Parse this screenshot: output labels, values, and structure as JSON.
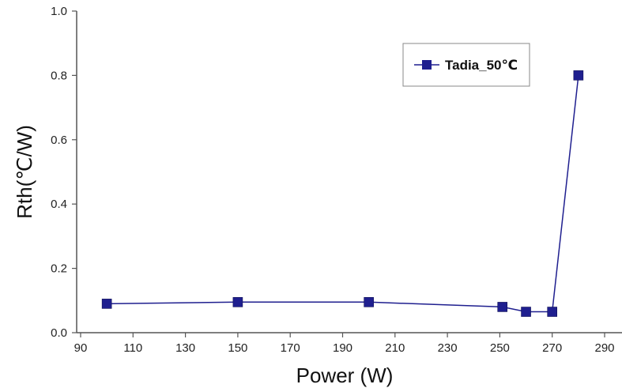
{
  "chart_data": {
    "type": "line",
    "title": "",
    "xlabel": "Power (W)",
    "ylabel": "Rth(℃/W)",
    "xlim": [
      90,
      290
    ],
    "ylim": [
      0.0,
      1.0
    ],
    "x_ticks": [
      "90",
      "110",
      "130",
      "150",
      "170",
      "190",
      "210",
      "230",
      "250",
      "270",
      "290"
    ],
    "y_ticks": [
      "0.0",
      "0.2",
      "0.4",
      "0.6",
      "0.8",
      "1.0"
    ],
    "grid": false,
    "legend_position": "top-right",
    "series": [
      {
        "name": "Tadia_50℃",
        "color": "#1f1f8f",
        "marker": "square",
        "x": [
          100,
          150,
          200,
          251,
          260,
          270,
          280
        ],
        "y": [
          0.09,
          0.095,
          0.095,
          0.08,
          0.065,
          0.065,
          0.8
        ]
      }
    ]
  }
}
